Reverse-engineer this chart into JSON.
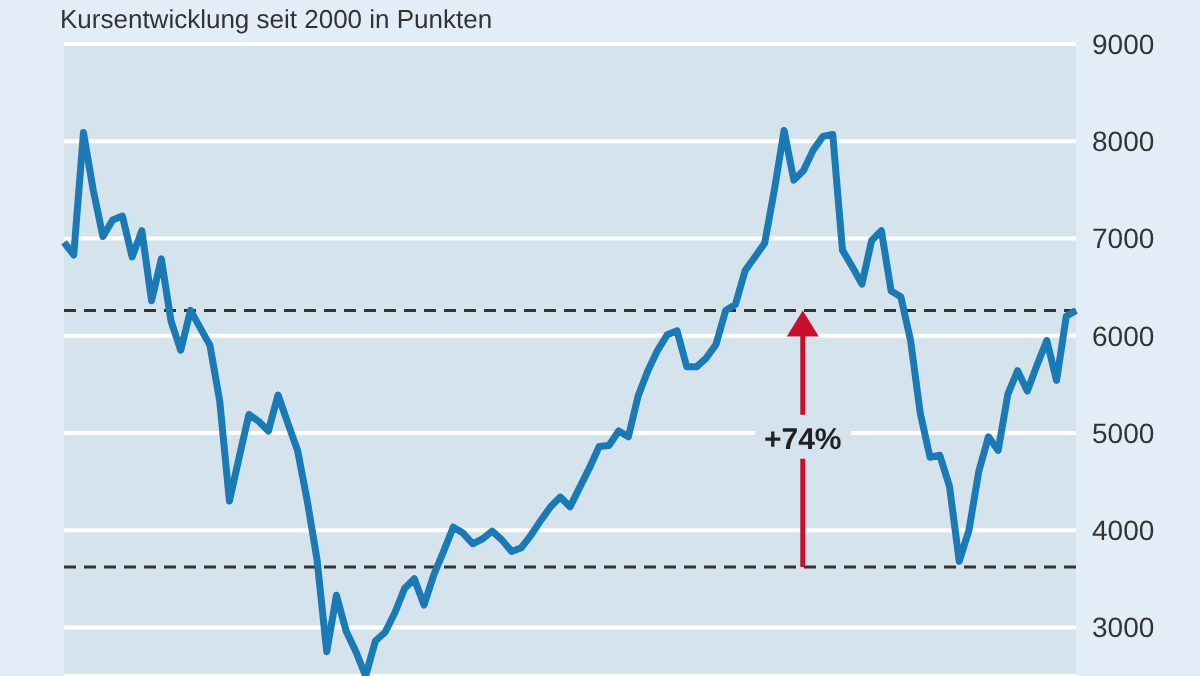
{
  "chart_data": {
    "type": "line",
    "title": "Kursentwicklung seit 2000 in Punkten",
    "categories": [
      null,
      null,
      null,
      null,
      null,
      null,
      null,
      null,
      null,
      null,
      null,
      null,
      null,
      null,
      null,
      null,
      null,
      null,
      null,
      null,
      null,
      null,
      null,
      null,
      null,
      null,
      null,
      null,
      null,
      null,
      null,
      null,
      null,
      null,
      null,
      null,
      null,
      null,
      null,
      null,
      null,
      null,
      null,
      null,
      null,
      null,
      null,
      null,
      null,
      null,
      null,
      null,
      null,
      null,
      null,
      null,
      null,
      null,
      null,
      null,
      null,
      null,
      null,
      null,
      null,
      null,
      null,
      null,
      null,
      null,
      null,
      null,
      null,
      null,
      null,
      null,
      null,
      null,
      null,
      null,
      null,
      null,
      null,
      null,
      null,
      null,
      null,
      null,
      null,
      null,
      null,
      null,
      null,
      null,
      null,
      null,
      null,
      null,
      null,
      null,
      null,
      null,
      null,
      null,
      null
    ],
    "series": [
      {
        "color": "#1a7ab5",
        "values": [
          6960,
          6830,
          8090,
          7500,
          7020,
          7190,
          7230,
          6810,
          7080,
          6360,
          6790,
          6150,
          5850,
          6260,
          6080,
          5900,
          5330,
          4300,
          4750,
          5190,
          5120,
          5020,
          5390,
          5100,
          4820,
          4300,
          3700,
          2750,
          3330,
          2960,
          2750,
          2500,
          2860,
          2950,
          3150,
          3400,
          3500,
          3230,
          3540,
          3780,
          4030,
          3970,
          3860,
          3910,
          3990,
          3900,
          3780,
          3820,
          3950,
          4100,
          4240,
          4340,
          4240,
          4440,
          4640,
          4860,
          4870,
          5020,
          4960,
          5380,
          5640,
          5850,
          6010,
          6050,
          5680,
          5680,
          5770,
          5910,
          6260,
          6320,
          6670,
          6810,
          6950,
          7500,
          8110,
          7600,
          7700,
          7910,
          8050,
          8070,
          6880,
          6710,
          6530,
          6980,
          7080,
          6460,
          6400,
          5950,
          5200,
          4750,
          4770,
          4450,
          3680,
          4000,
          4600,
          4960,
          4820,
          5400,
          5640,
          5430,
          5700,
          5950,
          5540,
          6200,
          6260
        ]
      }
    ],
    "ylim": [
      2500,
      9000
    ],
    "yticks": [
      3000,
      4000,
      5000,
      6000,
      7000,
      8000,
      9000
    ],
    "tick_labels": "y",
    "grid": "y",
    "marker": "none",
    "line_style": "solid",
    "ref_lines": [
      {
        "axis": "y",
        "value": 6260,
        "color": "#333333",
        "line_style": "dashed"
      },
      {
        "axis": "y",
        "value": 3620,
        "color": "#333333",
        "line_style": "dashed"
      }
    ],
    "annotations": [
      "+74%"
    ]
  }
}
